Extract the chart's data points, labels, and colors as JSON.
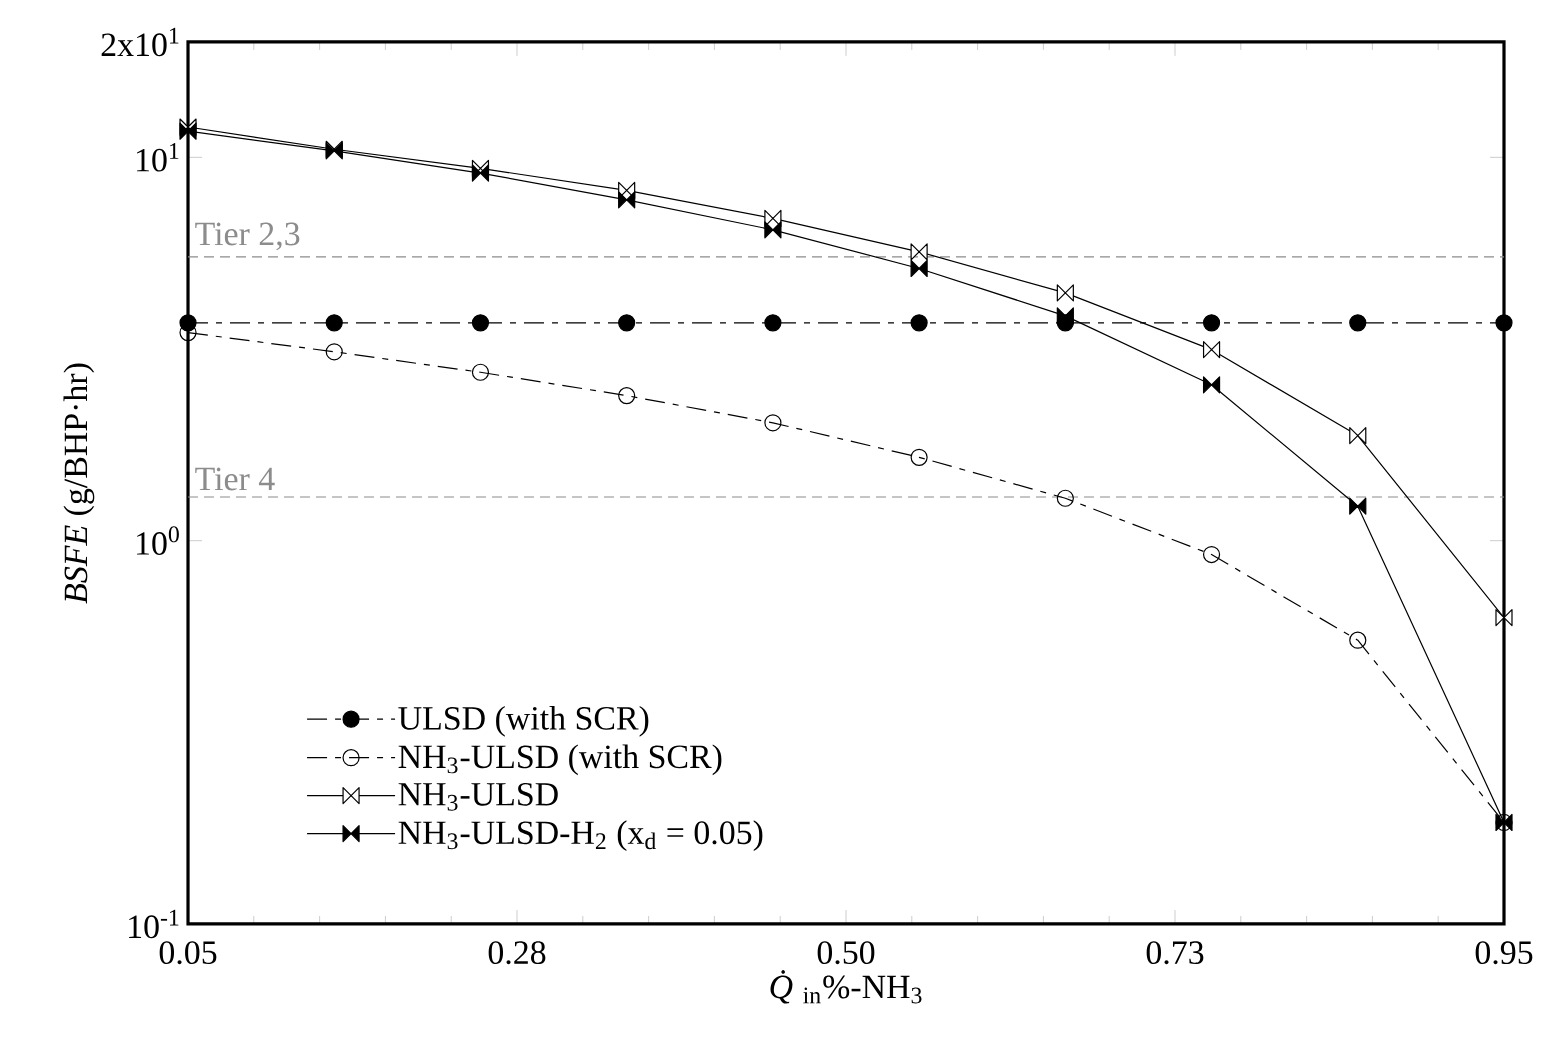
{
  "chart_data": {
    "type": "line",
    "xlabel": "*Q̇*$_{in}$%-NH$_{3}$",
    "ylabel": "*BSFE* (g/BHP·hr)",
    "x": [
      0.05,
      0.15,
      0.25,
      0.35,
      0.45,
      0.55,
      0.65,
      0.75,
      0.85,
      0.95
    ],
    "series": [
      {
        "name": "ULSD (with SCR)",
        "color": "#000000",
        "marker": "circle",
        "line_style": "dashed",
        "values": [
          3.7,
          3.7,
          3.7,
          3.7,
          3.7,
          3.7,
          3.7,
          3.7,
          3.7,
          3.7
        ]
      },
      {
        "name": "NH$_{3}$-ULSD (with SCR)",
        "color": "#000000",
        "marker": "circle-open",
        "line_style": "dashed",
        "values": [
          3.49,
          3.11,
          2.75,
          2.39,
          2.03,
          1.65,
          1.29,
          0.92,
          0.55,
          0.184
        ]
      },
      {
        "name": "NH$_{3}$-ULSD",
        "color": "#000000",
        "marker": "diamond-open",
        "line_style": "solid",
        "values": [
          12.0,
          10.5,
          9.36,
          8.2,
          6.93,
          5.67,
          4.43,
          3.15,
          1.88,
          0.63
        ]
      },
      {
        "name": "NH$_{3}$-ULSD-H$_{2}$ (x$_{d}$ = 0.05)",
        "color": "#000000",
        "marker": "diamond",
        "line_style": "solid",
        "values": [
          11.7,
          10.4,
          9.1,
          7.75,
          6.47,
          5.13,
          3.86,
          2.55,
          1.23,
          0.184
        ]
      }
    ],
    "ref_lines": [
      {
        "axis": "y",
        "value": 5.5,
        "label": "Tier 2,3",
        "color": "#8c8c8c",
        "line_style": "dashed"
      },
      {
        "axis": "y",
        "value": 1.3,
        "label": "Tier 4",
        "color": "#8c8c8c",
        "line_style": "dashed"
      }
    ],
    "log": "y",
    "legend": "bottom left",
    "grid": false,
    "xlim": [
      0.05,
      0.95
    ],
    "xticks": [
      0.05,
      {
        "value": 0.275,
        "label": "0.28"
      },
      {
        "value": 0.5,
        "label": "0.50"
      },
      {
        "value": 0.725,
        "label": "0.73"
      },
      0.95
    ],
    "ylim": [
      0.1,
      20
    ],
    "yticks": [
      {
        "value": 0.1,
        "label": "10$^{-1}$"
      },
      {
        "value": 1,
        "label": "10$^{0}$"
      },
      {
        "value": 10,
        "label": "10$^{1}$"
      },
      {
        "value": 20,
        "label": "2x10$^{1}$"
      }
    ]
  }
}
